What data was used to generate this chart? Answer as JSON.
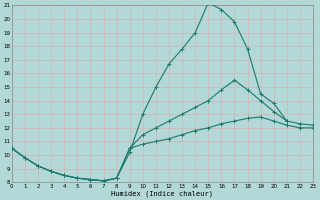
{
  "xlabel": "Humidex (Indice chaleur)",
  "xlim": [
    0,
    23
  ],
  "ylim": [
    8,
    21
  ],
  "yticks": [
    8,
    9,
    10,
    11,
    12,
    13,
    14,
    15,
    16,
    17,
    18,
    19,
    20,
    21
  ],
  "xticks": [
    0,
    1,
    2,
    3,
    4,
    5,
    6,
    7,
    8,
    9,
    10,
    11,
    12,
    13,
    14,
    15,
    16,
    17,
    18,
    19,
    20,
    21,
    22,
    23
  ],
  "bg_color": "#b2d8d8",
  "grid_color": "#d0b8b8",
  "line_color": "#1a7a6e",
  "curve1_x": [
    0,
    1,
    2,
    3,
    4,
    5,
    6,
    7,
    8,
    9,
    10,
    11,
    12,
    13,
    14,
    15,
    16,
    17,
    18,
    19,
    20,
    21
  ],
  "curve1_y": [
    10.5,
    9.8,
    9.2,
    8.8,
    8.5,
    8.3,
    8.2,
    8.1,
    8.3,
    10.2,
    13.0,
    15.0,
    16.7,
    17.8,
    19.0,
    21.2,
    20.7,
    19.8,
    17.8,
    14.5,
    13.8,
    12.5
  ],
  "curve2_x": [
    0,
    1,
    2,
    3,
    4,
    5,
    6,
    7,
    8,
    9,
    10,
    11,
    12,
    13,
    14,
    15,
    16,
    17,
    18,
    19,
    20,
    21,
    22,
    23
  ],
  "curve2_y": [
    10.5,
    9.8,
    9.2,
    8.8,
    8.5,
    8.3,
    8.2,
    8.1,
    8.3,
    10.5,
    11.5,
    12.0,
    12.5,
    13.0,
    13.5,
    14.0,
    14.8,
    15.5,
    14.8,
    14.0,
    13.2,
    12.5,
    12.3,
    12.2
  ],
  "curve3_x": [
    0,
    1,
    2,
    3,
    4,
    5,
    6,
    7,
    8,
    9,
    10,
    11,
    12,
    13,
    14,
    15,
    16,
    17,
    18,
    19,
    20,
    21,
    22,
    23
  ],
  "curve3_y": [
    10.5,
    9.8,
    9.2,
    8.8,
    8.5,
    8.3,
    8.2,
    8.1,
    8.3,
    10.5,
    10.8,
    11.0,
    11.2,
    11.5,
    11.8,
    12.0,
    12.3,
    12.5,
    12.7,
    12.8,
    12.5,
    12.2,
    12.0,
    12.0
  ]
}
